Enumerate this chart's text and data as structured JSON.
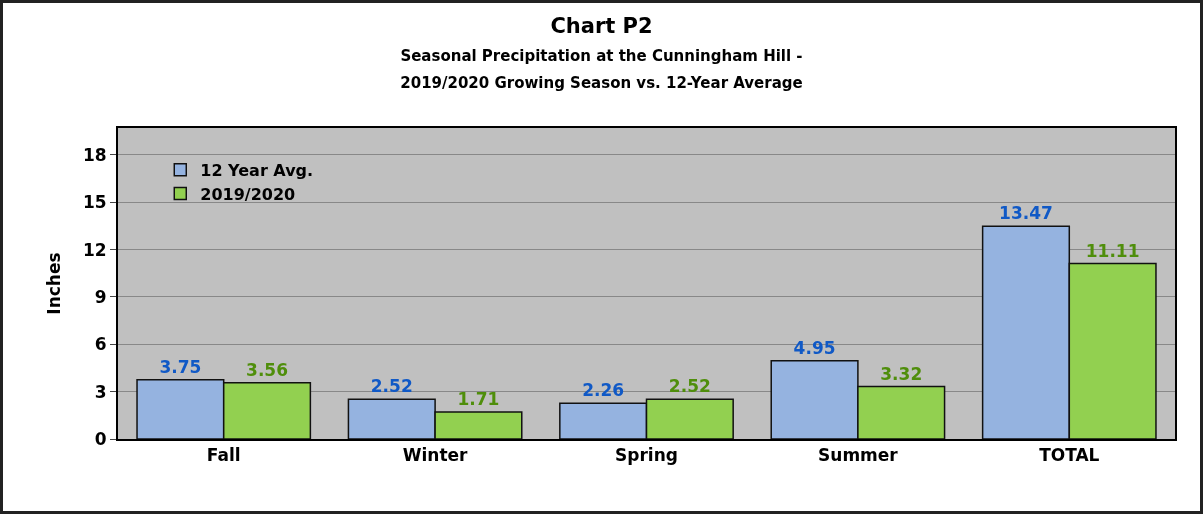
{
  "chart_data": {
    "type": "bar",
    "title": "Chart P2",
    "subtitle": "Seasonal Precipitation at the Cunningham Hill -\n2019/2020 Growing Season vs. 12-Year Average",
    "ylabel": "Inches",
    "categories": [
      "Fall",
      "Winter",
      "Spring",
      "Summer",
      "TOTAL"
    ],
    "series": [
      {
        "name": "12 Year Avg.",
        "color": "#95b3e0",
        "values": [
          3.75,
          2.52,
          2.26,
          4.95,
          13.47
        ]
      },
      {
        "name": "2019/2020",
        "color": "#92d050",
        "values": [
          3.56,
          1.71,
          2.52,
          3.32,
          11.11
        ]
      }
    ],
    "ylim": [
      0,
      19.7
    ],
    "yticks": [
      0,
      3,
      6,
      9,
      12,
      15,
      18
    ],
    "grid": "y",
    "legend": "top left",
    "data_labels": true
  }
}
